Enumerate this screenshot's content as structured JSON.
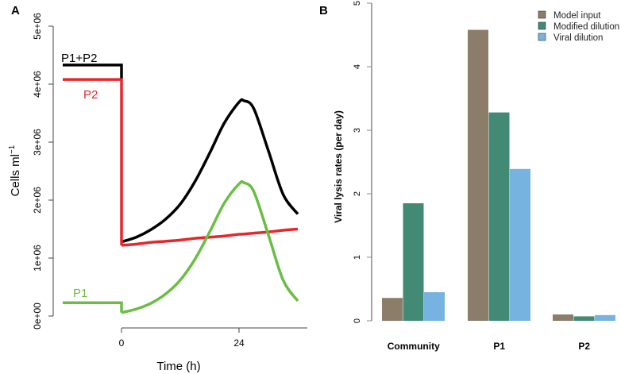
{
  "chart_data": [
    {
      "panel": "A",
      "type": "line",
      "xlabel": "Time (h)",
      "ylabel": "Cells ml",
      "ylabel_sup": "−1",
      "xlim": [
        -12,
        36
      ],
      "ylim": [
        0,
        5000000
      ],
      "xticks": [
        0,
        24
      ],
      "xtick_labels": [
        "0",
        "24"
      ],
      "yticks": [
        0,
        1000000,
        2000000,
        3000000,
        4000000,
        5000000
      ],
      "ytick_labels": [
        "0e+00",
        "1e+06",
        "2e+06",
        "3e+06",
        "4e+06",
        "5e+06"
      ],
      "x": [
        -12,
        0,
        0,
        3,
        6,
        9,
        12,
        15,
        18,
        21,
        24,
        25,
        27,
        30,
        33,
        36
      ],
      "series": [
        {
          "name": "P1+P2",
          "color": "#000000",
          "values": [
            4330000,
            4330000,
            4100000,
            1360000,
            1490000,
            1670000,
            1930000,
            2320000,
            2810000,
            3330000,
            3690000,
            3715000,
            3580000,
            2850000,
            2100000,
            1760000
          ],
          "start0": 1280000
        },
        {
          "name": "P2",
          "color": "#e8262a",
          "values": [
            4080000,
            4080000,
            1220000,
            1240000,
            1270000,
            1290000,
            1310000,
            1340000,
            1360000,
            1380000,
            1410000,
            1415000,
            1430000,
            1450000,
            1480000,
            1500000
          ]
        },
        {
          "name": "P1",
          "color": "#6bbd45",
          "values": [
            230000,
            230000,
            60000,
            120000,
            220000,
            380000,
            620000,
            980000,
            1450000,
            1950000,
            2280000,
            2300000,
            2150000,
            1400000,
            620000,
            260000
          ]
        }
      ]
    },
    {
      "panel": "B",
      "type": "bar",
      "ylabel": "Viral lysis rates (per day)",
      "ylim": [
        0,
        5
      ],
      "yticks": [
        0,
        1,
        2,
        3,
        4,
        5
      ],
      "ytick_labels": [
        "0",
        "1",
        "2",
        "3",
        "4",
        "5"
      ],
      "categories": [
        "Community",
        "P1",
        "P2"
      ],
      "legend_position": "top-right",
      "series": [
        {
          "name": "Model input",
          "color": "#8c7c6a",
          "values": [
            0.36,
            4.58,
            0.1
          ]
        },
        {
          "name": "Modified dilution",
          "color": "#428a74",
          "values": [
            1.85,
            3.28,
            0.07
          ]
        },
        {
          "name": "Viral dilution",
          "color": "#76b3e0",
          "values": [
            0.45,
            2.39,
            0.09
          ]
        }
      ]
    }
  ]
}
